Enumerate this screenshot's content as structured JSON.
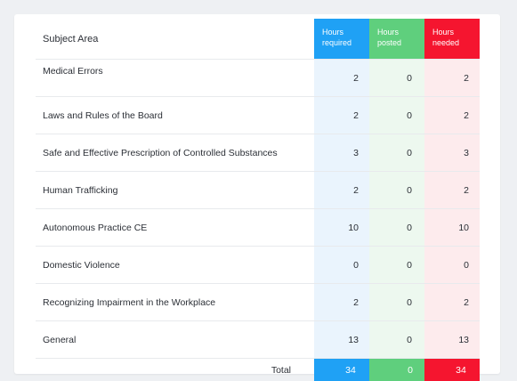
{
  "header": {
    "subject_label": "Subject Area",
    "hours_required": "Hours\nrequired",
    "hours_posted": "Hours\nposted",
    "hours_needed": "Hours\nneeded"
  },
  "rows": [
    {
      "subject": "Medical Errors",
      "required": "2",
      "posted": "0",
      "needed": "2"
    },
    {
      "subject": "Laws and Rules of the Board",
      "required": "2",
      "posted": "0",
      "needed": "2"
    },
    {
      "subject": "Safe and Effective Prescription of Controlled Substances",
      "required": "3",
      "posted": "0",
      "needed": "3"
    },
    {
      "subject": "Human Trafficking",
      "required": "2",
      "posted": "0",
      "needed": "2"
    },
    {
      "subject": "Autonomous Practice CE",
      "required": "10",
      "posted": "0",
      "needed": "10"
    },
    {
      "subject": "Domestic Violence",
      "required": "0",
      "posted": "0",
      "needed": "0"
    },
    {
      "subject": "Recognizing Impairment in the Workplace",
      "required": "2",
      "posted": "0",
      "needed": "2"
    },
    {
      "subject": "General",
      "required": "13",
      "posted": "0",
      "needed": "13"
    }
  ],
  "total": {
    "label": "Total",
    "required": "34",
    "posted": "0",
    "needed": "34"
  },
  "colors": {
    "required_accent": "#1fa1f5",
    "posted_accent": "#5fcf7d",
    "needed_accent": "#f5152f"
  }
}
